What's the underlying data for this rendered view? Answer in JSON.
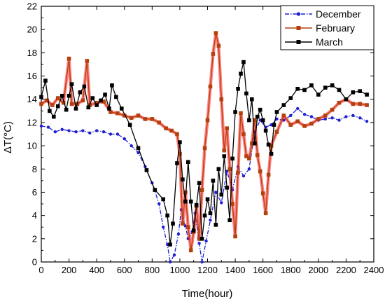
{
  "chart_data": {
    "type": "line",
    "title": "",
    "xlabel": "Time(hour)",
    "ylabel": "ΔT(°C)",
    "xlim": [
      0,
      2400
    ],
    "ylim": [
      0,
      22
    ],
    "x_ticks": [
      0,
      200,
      400,
      600,
      800,
      1000,
      1200,
      1400,
      1600,
      1800,
      2000,
      2200,
      2400
    ],
    "y_ticks": [
      0,
      2,
      4,
      6,
      8,
      10,
      12,
      14,
      16,
      18,
      20,
      22
    ],
    "grid": false,
    "legend_position": "top-right",
    "series": [
      {
        "name": "December",
        "color": "#1f1fd6",
        "marker": "circle",
        "line_style": "dash-dot",
        "points": [
          [
            0,
            11.7
          ],
          [
            50,
            11.6
          ],
          [
            100,
            11.2
          ],
          [
            150,
            11.4
          ],
          [
            200,
            11.3
          ],
          [
            250,
            11.2
          ],
          [
            300,
            11.3
          ],
          [
            350,
            11.1
          ],
          [
            400,
            11.3
          ],
          [
            450,
            11.2
          ],
          [
            500,
            11.0
          ],
          [
            550,
            11.0
          ],
          [
            600,
            10.6
          ],
          [
            650,
            10.0
          ],
          [
            700,
            9.4
          ],
          [
            750,
            8.2
          ],
          [
            800,
            6.8
          ],
          [
            850,
            5.0
          ],
          [
            880,
            3.0
          ],
          [
            910,
            1.5
          ],
          [
            930,
            0.0
          ],
          [
            960,
            0.6
          ],
          [
            990,
            2.4
          ],
          [
            1010,
            4.5
          ],
          [
            1040,
            3.1
          ],
          [
            1060,
            2.0
          ],
          [
            1090,
            2.6
          ],
          [
            1110,
            4.2
          ],
          [
            1140,
            1.6
          ],
          [
            1160,
            0.0
          ],
          [
            1190,
            1.8
          ],
          [
            1220,
            3.6
          ],
          [
            1260,
            6.0
          ],
          [
            1300,
            5.1
          ],
          [
            1340,
            7.8
          ],
          [
            1380,
            6.2
          ],
          [
            1420,
            8.2
          ],
          [
            1460,
            7.4
          ],
          [
            1500,
            8.0
          ],
          [
            1540,
            11.2
          ],
          [
            1580,
            12.2
          ],
          [
            1620,
            11.6
          ],
          [
            1660,
            11.8
          ],
          [
            1700,
            12.3
          ],
          [
            1750,
            12.2
          ],
          [
            1800,
            12.6
          ],
          [
            1850,
            13.2
          ],
          [
            1900,
            12.7
          ],
          [
            1950,
            12.5
          ],
          [
            2000,
            12.2
          ],
          [
            2050,
            12.3
          ],
          [
            2100,
            12.4
          ],
          [
            2150,
            12.2
          ],
          [
            2200,
            12.5
          ],
          [
            2250,
            12.6
          ],
          [
            2300,
            12.4
          ],
          [
            2350,
            12.1
          ]
        ]
      },
      {
        "name": "February",
        "color": "#b5400d",
        "marker": "square",
        "line_style": "solid",
        "points": [
          [
            0,
            13.6
          ],
          [
            40,
            13.9
          ],
          [
            80,
            13.5
          ],
          [
            120,
            14.1
          ],
          [
            160,
            13.7
          ],
          [
            200,
            17.5
          ],
          [
            220,
            13.6
          ],
          [
            260,
            13.6
          ],
          [
            300,
            13.9
          ],
          [
            330,
            17.3
          ],
          [
            350,
            13.5
          ],
          [
            400,
            13.7
          ],
          [
            450,
            13.8
          ],
          [
            500,
            12.9
          ],
          [
            550,
            12.8
          ],
          [
            600,
            12.6
          ],
          [
            650,
            12.4
          ],
          [
            700,
            12.6
          ],
          [
            750,
            12.3
          ],
          [
            800,
            12.3
          ],
          [
            850,
            12.0
          ],
          [
            900,
            11.5
          ],
          [
            940,
            11.3
          ],
          [
            980,
            11.0
          ],
          [
            1000,
            9.3
          ],
          [
            1020,
            3.3
          ],
          [
            1040,
            6.0
          ],
          [
            1060,
            3.0
          ],
          [
            1080,
            1.0
          ],
          [
            1100,
            2.6
          ],
          [
            1120,
            4.8
          ],
          [
            1140,
            2.0
          ],
          [
            1160,
            6.2
          ],
          [
            1180,
            9.8
          ],
          [
            1200,
            12.2
          ],
          [
            1220,
            15.1
          ],
          [
            1240,
            17.9
          ],
          [
            1260,
            19.7
          ],
          [
            1280,
            18.6
          ],
          [
            1300,
            14.0
          ],
          [
            1320,
            9.6
          ],
          [
            1340,
            11.5
          ],
          [
            1360,
            8.0
          ],
          [
            1380,
            5.0
          ],
          [
            1400,
            2.2
          ],
          [
            1420,
            7.7
          ],
          [
            1440,
            12.8
          ],
          [
            1460,
            11.0
          ],
          [
            1480,
            9.1
          ],
          [
            1500,
            8.9
          ],
          [
            1520,
            10.2
          ],
          [
            1540,
            12.2
          ],
          [
            1560,
            9.2
          ],
          [
            1580,
            7.8
          ],
          [
            1600,
            5.9
          ],
          [
            1620,
            4.2
          ],
          [
            1640,
            7.5
          ],
          [
            1660,
            10.0
          ],
          [
            1700,
            11.2
          ],
          [
            1750,
            12.6
          ],
          [
            1800,
            11.8
          ],
          [
            1850,
            12.1
          ],
          [
            1900,
            11.7
          ],
          [
            1950,
            11.9
          ],
          [
            2000,
            12.3
          ],
          [
            2050,
            12.6
          ],
          [
            2100,
            13.1
          ],
          [
            2150,
            13.7
          ],
          [
            2200,
            14.0
          ],
          [
            2250,
            13.6
          ],
          [
            2300,
            13.6
          ],
          [
            2350,
            13.5
          ]
        ]
      },
      {
        "name": "March",
        "color": "#000000",
        "marker": "square",
        "line_style": "solid",
        "points": [
          [
            0,
            14.2
          ],
          [
            30,
            15.6
          ],
          [
            60,
            13.0
          ],
          [
            90,
            12.5
          ],
          [
            120,
            13.4
          ],
          [
            150,
            14.3
          ],
          [
            180,
            13.1
          ],
          [
            200,
            14.3
          ],
          [
            220,
            15.3
          ],
          [
            250,
            13.2
          ],
          [
            280,
            14.6
          ],
          [
            310,
            15.1
          ],
          [
            340,
            13.3
          ],
          [
            370,
            14.1
          ],
          [
            400,
            13.5
          ],
          [
            430,
            13.9
          ],
          [
            460,
            14.4
          ],
          [
            490,
            13.2
          ],
          [
            510,
            15.2
          ],
          [
            540,
            14.2
          ],
          [
            580,
            13.2
          ],
          [
            640,
            11.8
          ],
          [
            700,
            9.8
          ],
          [
            760,
            7.9
          ],
          [
            820,
            6.2
          ],
          [
            880,
            5.4
          ],
          [
            910,
            4.0
          ],
          [
            930,
            1.5
          ],
          [
            950,
            3.3
          ],
          [
            980,
            8.5
          ],
          [
            1000,
            10.3
          ],
          [
            1020,
            7.1
          ],
          [
            1040,
            5.2
          ],
          [
            1060,
            8.6
          ],
          [
            1080,
            5.2
          ],
          [
            1100,
            2.7
          ],
          [
            1120,
            4.9
          ],
          [
            1140,
            6.8
          ],
          [
            1160,
            2.0
          ],
          [
            1180,
            4.0
          ],
          [
            1200,
            5.4
          ],
          [
            1220,
            4.2
          ],
          [
            1240,
            7.0
          ],
          [
            1260,
            3.2
          ],
          [
            1280,
            8.0
          ],
          [
            1300,
            5.8
          ],
          [
            1320,
            9.1
          ],
          [
            1340,
            6.4
          ],
          [
            1360,
            3.6
          ],
          [
            1380,
            8.9
          ],
          [
            1400,
            12.9
          ],
          [
            1420,
            14.9
          ],
          [
            1440,
            16.2
          ],
          [
            1460,
            17.2
          ],
          [
            1480,
            14.5
          ],
          [
            1500,
            12.2
          ],
          [
            1520,
            14.0
          ],
          [
            1540,
            10.2
          ],
          [
            1560,
            12.5
          ],
          [
            1580,
            13.1
          ],
          [
            1600,
            12.2
          ],
          [
            1620,
            11.3
          ],
          [
            1640,
            10.1
          ],
          [
            1660,
            9.3
          ],
          [
            1680,
            11.8
          ],
          [
            1700,
            12.9
          ],
          [
            1750,
            13.5
          ],
          [
            1800,
            14.1
          ],
          [
            1850,
            14.9
          ],
          [
            1900,
            14.8
          ],
          [
            1950,
            15.2
          ],
          [
            2000,
            14.4
          ],
          [
            2050,
            15.0
          ],
          [
            2100,
            15.2
          ],
          [
            2150,
            14.8
          ],
          [
            2200,
            14.0
          ],
          [
            2250,
            14.6
          ],
          [
            2300,
            14.7
          ],
          [
            2350,
            14.4
          ]
        ]
      }
    ]
  }
}
